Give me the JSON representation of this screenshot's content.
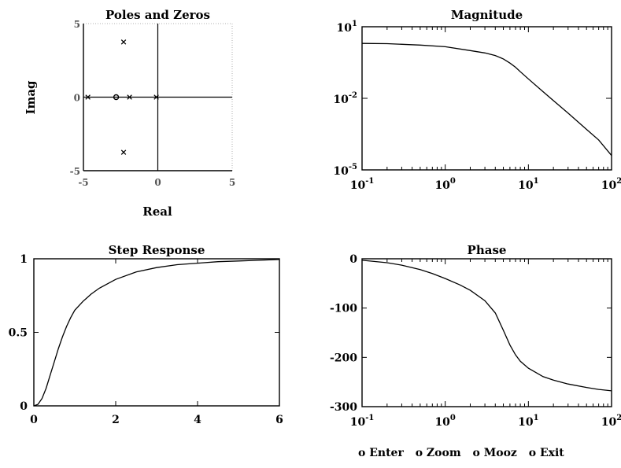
{
  "chart_data": [
    {
      "type": "scatter",
      "title": "Poles and Zeros",
      "xlabel": "Real",
      "ylabel": "Imag",
      "xlim": [
        -5,
        5
      ],
      "ylim": [
        -5,
        5
      ],
      "xticks": [
        "-5",
        "0",
        "5"
      ],
      "yticks": [
        "-5",
        "0",
        "5"
      ],
      "grid": false,
      "poles": [
        {
          "x": -4.7,
          "y": 0
        },
        {
          "x": -1.9,
          "y": 0
        },
        {
          "x": -0.1,
          "y": 0
        },
        {
          "x": -2.3,
          "y": 3.75
        },
        {
          "x": -2.3,
          "y": -3.75
        }
      ],
      "zeros": [
        {
          "x": -2.8,
          "y": 0
        }
      ]
    },
    {
      "type": "line",
      "title": "Magnitude",
      "xscale": "log",
      "yscale": "log",
      "xlim": [
        0.1,
        100
      ],
      "ylim": [
        1e-05,
        10
      ],
      "xticks": [
        "10",
        "10",
        "10",
        "10"
      ],
      "xtick_exponents": [
        "-1",
        "0",
        "1",
        "2"
      ],
      "yticks": [
        "10",
        "10",
        "10"
      ],
      "ytick_exponents": [
        "1",
        "-2",
        "-5"
      ],
      "series": [
        {
          "x": [
            0.1,
            0.2,
            0.5,
            1,
            2,
            3,
            4,
            5,
            6,
            7,
            8,
            10,
            15,
            20,
            30,
            50,
            70,
            100
          ],
          "y": [
            2.0,
            1.95,
            1.7,
            1.45,
            1.0,
            0.8,
            0.62,
            0.45,
            0.3,
            0.2,
            0.13,
            0.065,
            0.019,
            0.008,
            0.0024,
            0.0005,
            0.00018,
            4e-05
          ]
        }
      ]
    },
    {
      "type": "line",
      "title": "Step Response",
      "xlim": [
        0,
        6
      ],
      "ylim": [
        0,
        1
      ],
      "xticks": [
        "0",
        "2",
        "4",
        "6"
      ],
      "yticks": [
        "0",
        "0.5",
        "1"
      ],
      "series": [
        {
          "x": [
            0,
            0.1,
            0.2,
            0.3,
            0.4,
            0.5,
            0.6,
            0.7,
            0.8,
            0.9,
            1.0,
            1.2,
            1.4,
            1.6,
            1.8,
            2.0,
            2.5,
            3.0,
            3.5,
            4.0,
            4.5,
            5.0,
            5.5,
            6.0
          ],
          "y": [
            0,
            0.01,
            0.05,
            0.12,
            0.21,
            0.3,
            0.39,
            0.47,
            0.54,
            0.6,
            0.65,
            0.71,
            0.76,
            0.8,
            0.83,
            0.86,
            0.91,
            0.94,
            0.96,
            0.97,
            0.98,
            0.985,
            0.99,
            0.995
          ]
        }
      ]
    },
    {
      "type": "line",
      "title": "Phase",
      "xscale": "log",
      "xlim": [
        0.1,
        100
      ],
      "ylim": [
        -300,
        0
      ],
      "xticks": [
        "10",
        "10",
        "10",
        "10"
      ],
      "xtick_exponents": [
        "-1",
        "0",
        "1",
        "2"
      ],
      "yticks": [
        "0",
        "-100",
        "-200",
        "-300"
      ],
      "series": [
        {
          "x": [
            0.1,
            0.2,
            0.3,
            0.5,
            0.7,
            1,
            1.5,
            2,
            3,
            4,
            5,
            6,
            7,
            8,
            10,
            15,
            20,
            30,
            50,
            70,
            100
          ],
          "y": [
            -3,
            -8,
            -13,
            -22,
            -30,
            -40,
            -53,
            -64,
            -85,
            -110,
            -145,
            -175,
            -195,
            -208,
            -222,
            -239,
            -246,
            -254,
            -261,
            -265,
            -268
          ]
        }
      ]
    }
  ],
  "menu": {
    "items": [
      {
        "bullet": "o",
        "label": "Enter"
      },
      {
        "bullet": "o",
        "label": "Zoom"
      },
      {
        "bullet": "o",
        "label": "Mooz"
      },
      {
        "bullet": "o",
        "label": "Exit"
      }
    ]
  }
}
